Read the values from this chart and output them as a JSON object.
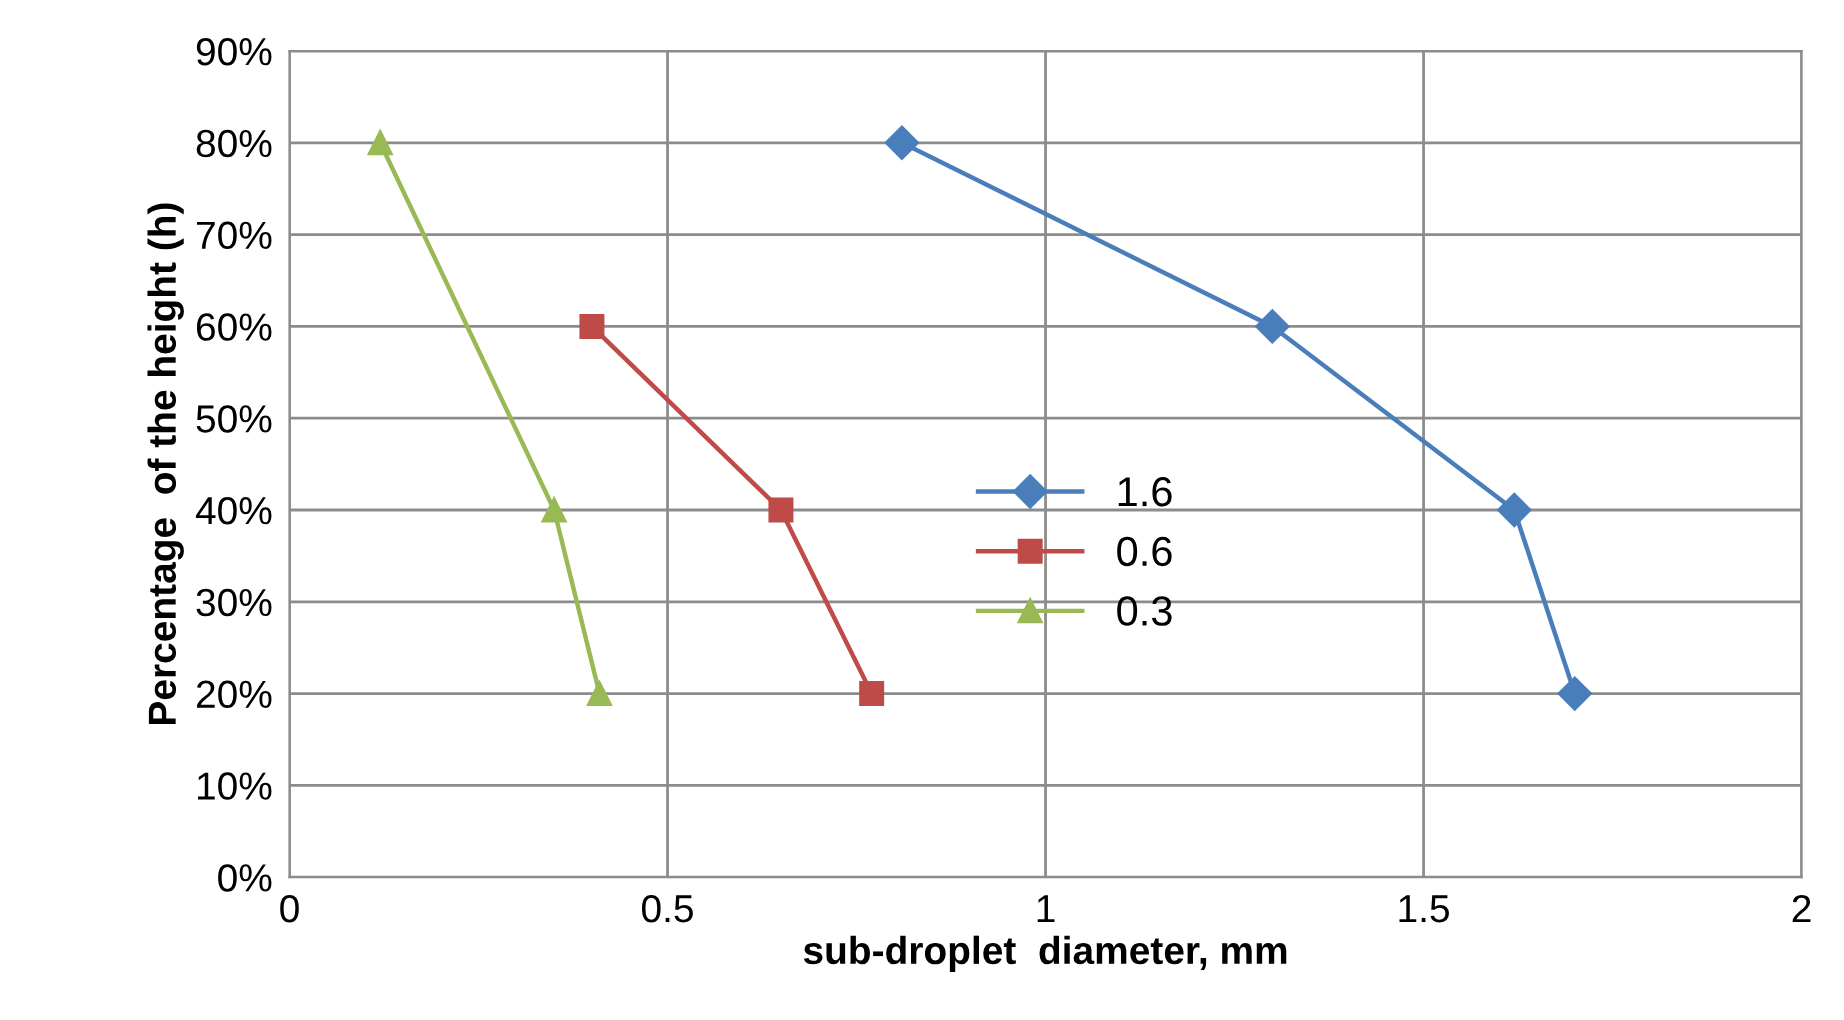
{
  "chart_data": {
    "type": "line",
    "xlabel": "sub-droplet  diameter, mm",
    "ylabel": "Percentage  of the height (h)",
    "xlim": [
      0,
      2
    ],
    "xticks": [
      0,
      0.5,
      1,
      1.5,
      2
    ],
    "ylim": [
      0,
      90
    ],
    "yticks": [
      {
        "value": 0,
        "label": "0%"
      },
      {
        "value": 10,
        "label": "10%"
      },
      {
        "value": 20,
        "label": "20%"
      },
      {
        "value": 30,
        "label": "30%"
      },
      {
        "value": 40,
        "label": "40%"
      },
      {
        "value": 50,
        "label": "50%"
      },
      {
        "value": 60,
        "label": "60%"
      },
      {
        "value": 70,
        "label": "70%"
      },
      {
        "value": 80,
        "label": "80%"
      },
      {
        "value": 90,
        "label": "90%"
      }
    ],
    "grid": true,
    "legend": "center",
    "line_style": "solid",
    "series": [
      {
        "name": "1.6",
        "color": "#4a7ebb",
        "marker": "diamond",
        "x": [
          0.81,
          1.3,
          1.62,
          1.7
        ],
        "values": [
          80,
          60,
          40,
          20
        ]
      },
      {
        "name": "0.6",
        "color": "#be4b48",
        "marker": "square",
        "x": [
          0.4,
          0.65,
          0.77
        ],
        "values": [
          60,
          40,
          20
        ]
      },
      {
        "name": "0.3",
        "color": "#98b954",
        "marker": "triangle",
        "x": [
          0.12,
          0.35,
          0.41
        ],
        "values": [
          80,
          40,
          20
        ]
      }
    ]
  }
}
